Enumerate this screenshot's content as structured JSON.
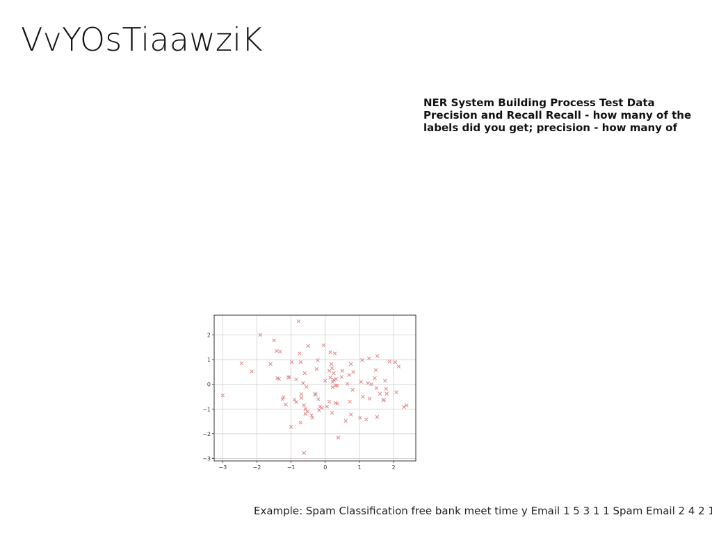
{
  "slide": {
    "title": "VvYOsTiaawziK",
    "notes": "NER System Building Process Test Data Precision and Recall Recall - how many of the labels did you get; precision - how many of",
    "caption": "Example: Spam Classification free bank meet time y Email 1 5 3 1 1 Spam Email 2 4 2 1 1"
  },
  "chart_data": {
    "type": "scatter",
    "title": "",
    "xlabel": "",
    "ylabel": "",
    "xlim": [
      -3.25,
      2.65
    ],
    "ylim": [
      -3.1,
      2.8
    ],
    "xticks": [
      -3,
      -2,
      -1,
      0,
      1,
      2
    ],
    "yticks": [
      2,
      1,
      0,
      -1,
      -2,
      -3
    ],
    "grid": true,
    "marker": "x",
    "marker_color": "#e08585",
    "series": [
      {
        "points": [
          [
            -3.0,
            -0.45
          ],
          [
            -2.45,
            0.85
          ],
          [
            -2.15,
            0.52
          ],
          [
            -1.9,
            2.0
          ],
          [
            -1.6,
            0.82
          ],
          [
            -1.5,
            1.78
          ],
          [
            -1.42,
            1.35
          ],
          [
            -1.32,
            1.32
          ],
          [
            -1.4,
            0.25
          ],
          [
            -1.35,
            0.22
          ],
          [
            -1.25,
            -0.6
          ],
          [
            -1.22,
            -0.52
          ],
          [
            -1.15,
            -0.82
          ],
          [
            -1.08,
            0.28
          ],
          [
            -1.05,
            0.3
          ],
          [
            -0.98,
            0.9
          ],
          [
            -1.0,
            -1.72
          ],
          [
            -0.9,
            -0.62
          ],
          [
            -0.85,
            0.2
          ],
          [
            -0.85,
            -0.72
          ],
          [
            -0.78,
            2.55
          ],
          [
            -0.75,
            1.25
          ],
          [
            -0.72,
            0.9
          ],
          [
            -0.7,
            -0.4
          ],
          [
            -0.7,
            -0.55
          ],
          [
            -0.72,
            -1.55
          ],
          [
            -0.65,
            0.05
          ],
          [
            -0.62,
            -0.85
          ],
          [
            -0.6,
            0.45
          ],
          [
            -0.58,
            -1.0
          ],
          [
            -0.58,
            -1.2
          ],
          [
            -0.52,
            -1.1
          ],
          [
            -0.55,
            -0.1
          ],
          [
            -0.5,
            1.55
          ],
          [
            -0.4,
            -1.25
          ],
          [
            -0.38,
            -1.35
          ],
          [
            -0.3,
            -0.38
          ],
          [
            -0.28,
            -0.42
          ],
          [
            -0.25,
            0.62
          ],
          [
            -0.22,
            0.98
          ],
          [
            -0.2,
            -0.6
          ],
          [
            -0.18,
            -1.05
          ],
          [
            -0.15,
            -0.9
          ],
          [
            -0.05,
            1.58
          ],
          [
            0.0,
            0.15
          ],
          [
            0.05,
            -0.9
          ],
          [
            0.12,
            -0.7
          ],
          [
            0.15,
            0.28
          ],
          [
            0.15,
            1.3
          ],
          [
            0.18,
            0.82
          ],
          [
            0.2,
            0.65
          ],
          [
            0.2,
            -1.15
          ],
          [
            0.22,
            0.1
          ],
          [
            0.25,
            0.18
          ],
          [
            0.25,
            0.45
          ],
          [
            0.28,
            1.25
          ],
          [
            0.3,
            -0.05
          ],
          [
            0.3,
            -0.75
          ],
          [
            0.32,
            0.22
          ],
          [
            0.35,
            -0.78
          ],
          [
            0.38,
            -2.15
          ],
          [
            0.48,
            0.3
          ],
          [
            0.5,
            0.55
          ],
          [
            0.6,
            -1.48
          ],
          [
            0.65,
            0.02
          ],
          [
            0.7,
            0.38
          ],
          [
            0.72,
            -0.7
          ],
          [
            0.75,
            -1.22
          ],
          [
            0.75,
            0.82
          ],
          [
            0.8,
            -0.22
          ],
          [
            0.82,
            0.5
          ],
          [
            1.02,
            -1.35
          ],
          [
            1.05,
            0.1
          ],
          [
            1.08,
            0.98
          ],
          [
            1.1,
            -0.5
          ],
          [
            1.2,
            -1.42
          ],
          [
            1.25,
            0.05
          ],
          [
            1.28,
            1.05
          ],
          [
            1.3,
            -0.58
          ],
          [
            1.35,
            0.0
          ],
          [
            1.45,
            0.25
          ],
          [
            1.48,
            0.58
          ],
          [
            1.5,
            -0.15
          ],
          [
            1.52,
            -1.32
          ],
          [
            1.52,
            1.15
          ],
          [
            1.6,
            -0.38
          ],
          [
            1.7,
            -0.65
          ],
          [
            1.72,
            -0.62
          ],
          [
            1.75,
            0.15
          ],
          [
            1.78,
            -0.18
          ],
          [
            1.8,
            -0.38
          ],
          [
            1.88,
            0.92
          ],
          [
            2.05,
            0.9
          ],
          [
            2.08,
            -0.32
          ],
          [
            2.15,
            0.72
          ],
          [
            2.3,
            -0.92
          ],
          [
            2.38,
            -0.85
          ],
          [
            -0.62,
            -2.78
          ],
          [
            0.35,
            -0.05
          ],
          [
            0.12,
            0.55
          ],
          [
            -0.1,
            -0.95
          ],
          [
            0.22,
            -0.12
          ]
        ]
      }
    ]
  }
}
